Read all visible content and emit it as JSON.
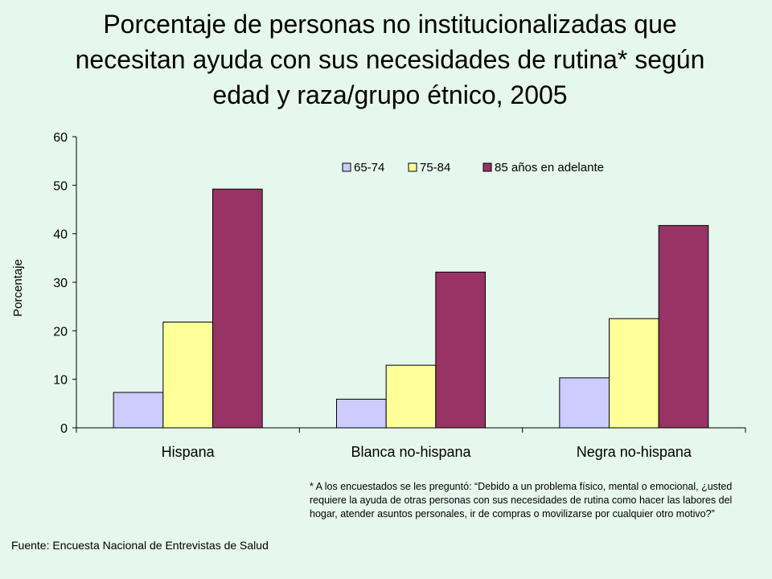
{
  "title_lines": [
    "Porcentaje de personas no institucionalizadas que",
    "necesitan ayuda con sus necesidades de rutina* según",
    "edad y raza/grupo étnico, 2005"
  ],
  "footnote": "* A los encuestados se les preguntó: “Debido a un problema físico, mental o emocional, ¿usted requiere la ayuda de otras personas con sus necesidades de rutina como hacer las labores del hogar, atender asuntos personales, ir de compras o movilizarse por cualquier otro motivo?”",
  "source": "Fuente: Encuesta Nacional de Entrevistas de Salud",
  "chart_data": {
    "type": "bar",
    "title": "Porcentaje de personas no institucionalizadas que necesitan ayuda con sus necesidades de rutina* según edad y raza/grupo étnico, 2005",
    "xlabel": "",
    "ylabel": "Porcentaje",
    "ylim": [
      0,
      60
    ],
    "yticks": [
      0,
      10,
      20,
      30,
      40,
      50,
      60
    ],
    "grid": false,
    "legend_position": "top-right",
    "categories": [
      "Hispana",
      "Blanca no-hispana",
      "Negra no-hispana"
    ],
    "series": [
      {
        "name": "65-74",
        "color": "#ccccff",
        "values": [
          7.3,
          5.9,
          10.3
        ]
      },
      {
        "name": "75-84",
        "color": "#ffff99",
        "values": [
          21.8,
          12.9,
          22.5
        ]
      },
      {
        "name": "85 años en adelante",
        "color": "#993366",
        "values": [
          49.2,
          32.1,
          41.7
        ]
      }
    ]
  }
}
